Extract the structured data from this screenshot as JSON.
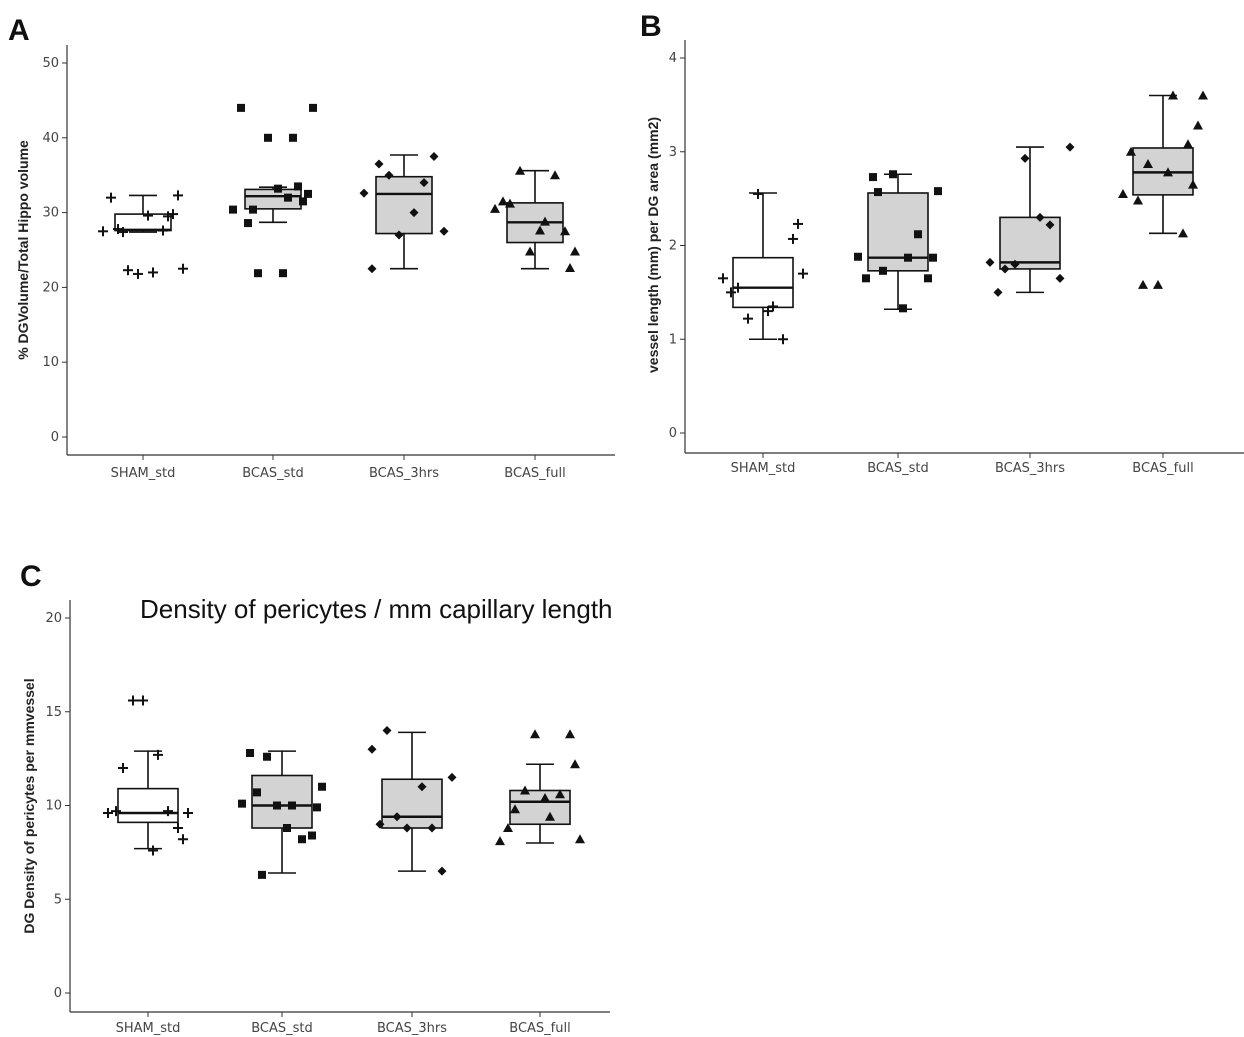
{
  "chart_data": [
    {
      "panel": "A",
      "type": "box",
      "title": "",
      "xlabel": "",
      "ylabel": "% DGVolume/Total Hippo volume",
      "ylim": [
        0,
        50
      ],
      "yticks": [
        0,
        10,
        20,
        30,
        40,
        50
      ],
      "categories": [
        "SHAM_std",
        "BCAS_std",
        "BCAS_3hrs",
        "BCAS_full"
      ],
      "fill_colors": [
        "#ffffff",
        "#d3d3d3",
        "#d3d3d3",
        "#d3d3d3"
      ],
      "marker_shapes": [
        "plus",
        "square",
        "diamond",
        "triangle"
      ],
      "boxes": [
        {
          "min": 27.4,
          "q1": 27.6,
          "median": 27.7,
          "q3": 29.8,
          "max": 32.3
        },
        {
          "min": 28.7,
          "q1": 30.5,
          "median": 32.2,
          "q3": 33.1,
          "max": 33.4
        },
        {
          "min": 22.5,
          "q1": 27.2,
          "median": 32.5,
          "q3": 34.8,
          "max": 37.7
        },
        {
          "min": 22.5,
          "q1": 26.0,
          "median": 28.7,
          "q3": 31.3,
          "max": 35.6
        }
      ],
      "points": [
        [
          27.5,
          27.8,
          29.8,
          22.3,
          22.0,
          22.5,
          21.8,
          27.6,
          32.0,
          32.3,
          29.6,
          27.4,
          29.5
        ],
        [
          30.4,
          28.6,
          31.5,
          21.9,
          21.9,
          44.0,
          40.0,
          40.0,
          44.0,
          32.5,
          33.2,
          30.4,
          33.5,
          32.0
        ],
        [
          32.6,
          36.5,
          37.5,
          35.0,
          30.0,
          27.5,
          27.0,
          34.0,
          22.5
        ],
        [
          30.5,
          31.2,
          27.5,
          35.6,
          28.8,
          24.8,
          24.8,
          35.0,
          31.5,
          22.6,
          27.6
        ]
      ]
    },
    {
      "panel": "B",
      "type": "box",
      "title": "",
      "xlabel": "",
      "ylabel": "vessel length (mm) per DG area (mm2)",
      "ylim": [
        0,
        4
      ],
      "yticks": [
        0,
        1,
        2,
        3,
        4
      ],
      "categories": [
        "SHAM_std",
        "BCAS_std",
        "BCAS_3hrs",
        "BCAS_full"
      ],
      "fill_colors": [
        "#ffffff",
        "#d3d3d3",
        "#d3d3d3",
        "#d3d3d3"
      ],
      "marker_shapes": [
        "plus",
        "square",
        "diamond",
        "triangle"
      ],
      "boxes": [
        {
          "min": 1.0,
          "q1": 1.34,
          "median": 1.55,
          "q3": 1.87,
          "max": 2.56
        },
        {
          "min": 1.32,
          "q1": 1.73,
          "median": 1.87,
          "q3": 2.56,
          "max": 2.76
        },
        {
          "min": 1.5,
          "q1": 1.75,
          "median": 1.82,
          "q3": 2.3,
          "max": 3.05
        },
        {
          "min": 2.13,
          "q1": 2.54,
          "median": 2.78,
          "q3": 3.04,
          "max": 3.6
        }
      ],
      "points": [
        [
          1.65,
          1.55,
          2.07,
          1.22,
          1.35,
          1.7,
          2.55,
          1.0,
          1.5,
          2.23,
          1.3
        ],
        [
          1.88,
          2.73,
          1.65,
          1.73,
          1.87,
          2.58,
          2.76,
          2.12,
          1.65,
          1.87,
          1.33,
          2.57
        ],
        [
          1.82,
          1.75,
          1.65,
          1.8,
          2.3,
          3.05,
          2.93,
          2.22,
          1.5
        ],
        [
          2.55,
          2.48,
          2.65,
          2.87,
          3.6,
          3.6,
          1.58,
          2.13,
          3.0,
          3.28,
          2.78,
          1.58,
          3.08
        ]
      ]
    },
    {
      "panel": "C",
      "type": "box",
      "title": "Density of pericytes / mm capillary length",
      "xlabel": "",
      "ylabel": "DG Density of pericytes per mmvessel",
      "ylim": [
        0,
        20
      ],
      "yticks": [
        0,
        5,
        10,
        15,
        20
      ],
      "categories": [
        "SHAM_std",
        "BCAS_std",
        "BCAS_3hrs",
        "BCAS_full"
      ],
      "fill_colors": [
        "#ffffff",
        "#d3d3d3",
        "#d3d3d3",
        "#d3d3d3"
      ],
      "marker_shapes": [
        "plus",
        "square",
        "diamond",
        "triangle"
      ],
      "boxes": [
        {
          "min": 7.7,
          "q1": 9.1,
          "median": 9.6,
          "q3": 10.9,
          "max": 12.9
        },
        {
          "min": 6.4,
          "q1": 8.8,
          "median": 10.0,
          "q3": 11.6,
          "max": 12.9
        },
        {
          "min": 6.5,
          "q1": 8.8,
          "median": 9.4,
          "q3": 11.4,
          "max": 13.9
        },
        {
          "min": 8.0,
          "q1": 9.0,
          "median": 10.2,
          "q3": 10.8,
          "max": 12.2
        }
      ],
      "points": [
        [
          9.6,
          12.0,
          8.8,
          15.6,
          12.7,
          9.6,
          15.6,
          9.7,
          9.7,
          8.2,
          7.6
        ],
        [
          10.1,
          10.7,
          8.4,
          12.6,
          10.0,
          11.0,
          10.0,
          8.2,
          12.8,
          9.9,
          8.8,
          6.3
        ],
        [
          13.0,
          14.0,
          6.5,
          9.4,
          11.0,
          11.5,
          8.8,
          8.8,
          9.0
        ],
        [
          8.1,
          9.8,
          13.8,
          10.8,
          9.4,
          8.2,
          13.8,
          10.6,
          8.8,
          12.2,
          10.4
        ]
      ]
    }
  ]
}
